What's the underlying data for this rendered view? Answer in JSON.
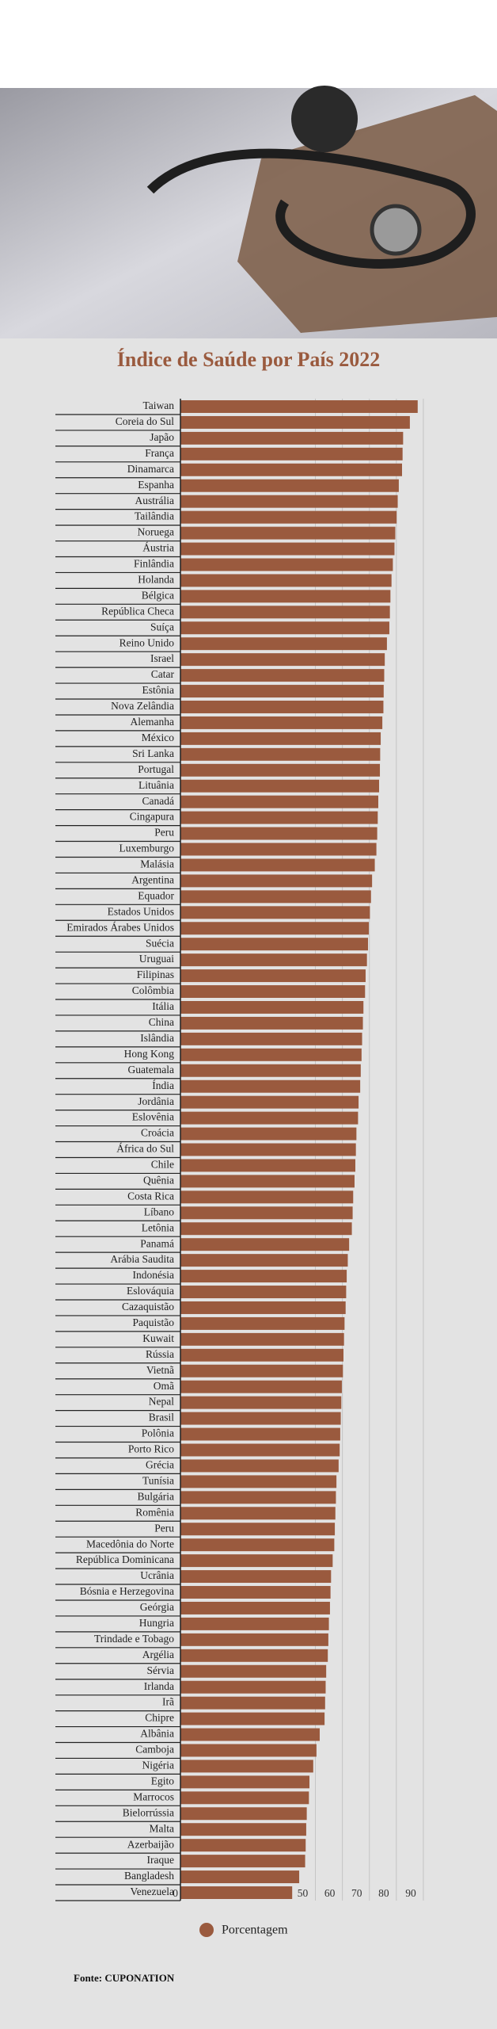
{
  "chart_data": {
    "type": "bar",
    "orientation": "horizontal",
    "title": "Índice de Saúde por País 2022",
    "source": "Fonte: CUPONATION",
    "categories": [
      "Taiwan",
      "Coreia do Sul",
      "Japão",
      "França",
      "Dinamarca",
      "Espanha",
      "Austrália",
      "Tailândia",
      "Noruega",
      "Áustria",
      "Finlândia",
      "Holanda",
      "Bélgica",
      "República Checa",
      "Suíça",
      "Reino Unido",
      "Israel",
      "Catar",
      "Estônia",
      "Nova Zelândia",
      "Alemanha",
      "México",
      "Sri Lanka",
      "Portugal",
      "Lituânia",
      "Canadá",
      "Cingapura",
      "Peru",
      "Luxemburgo",
      "Malásia",
      "Argentina",
      "Equador",
      "Estados Unidos",
      "Emirados Árabes Unidos",
      "Suécia",
      "Uruguai",
      "Filipinas",
      "Colômbia",
      "Itália",
      "China",
      "Islândia",
      "Hong Kong",
      "Guatemala",
      "Índia",
      "Jordânia",
      "Eslovênia",
      "Croácia",
      "África do Sul",
      "Chile",
      "Quênia",
      "Costa Rica",
      "Líbano",
      "Letônia",
      "Panamá",
      "Arábia Saudita",
      "Indonésia",
      "Eslováquia",
      "Cazaquistão",
      "Paquistão",
      "Kuwait",
      "Rússia",
      "Vietnã",
      "Omã",
      "Nepal",
      "Brasil",
      "Polônia",
      "Porto Rico",
      "Grécia",
      "Tunísia",
      "Bulgária",
      "Romênia",
      "Peru",
      "Macedônia do Norte",
      "República Dominicana",
      "Ucrânia",
      "Bósnia e Herzegovina",
      "Geórgia",
      "Hungria",
      "Trindade e Tobago",
      "Argélia",
      "Sérvia",
      "Irlanda",
      "Irã",
      "Chipre",
      "Albânia",
      "Camboja",
      "Nigéria",
      "Egito",
      "Marrocos",
      "Bielorrússia",
      "Malta",
      "Azerbaijão",
      "Iraque",
      "Bangladesh",
      "Venezuela"
    ],
    "series": [
      {
        "name": "Porcentagem",
        "color": "#9a5a3e",
        "values": [
          87.9,
          85.0,
          82.5,
          82.3,
          82.1,
          80.9,
          80.5,
          80.1,
          79.6,
          79.3,
          78.7,
          78.2,
          77.8,
          77.6,
          77.4,
          76.5,
          75.7,
          75.5,
          75.3,
          75.2,
          74.8,
          74.2,
          74.0,
          73.9,
          73.6,
          73.3,
          73.1,
          72.9,
          72.6,
          72.0,
          71.0,
          70.6,
          70.2,
          69.8,
          69.5,
          69.1,
          68.6,
          68.4,
          67.8,
          67.6,
          67.3,
          67.1,
          66.8,
          66.6,
          66.0,
          65.8,
          65.2,
          65.0,
          64.8,
          64.5,
          64.0,
          63.8,
          63.5,
          62.5,
          62.0,
          61.6,
          61.4,
          61.2,
          60.8,
          60.6,
          60.4,
          60.2,
          59.8,
          59.6,
          59.4,
          59.2,
          59.0,
          58.6,
          57.8,
          57.6,
          57.4,
          57.2,
          57.0,
          56.4,
          55.8,
          55.6,
          55.4,
          55.0,
          54.8,
          54.6,
          54.0,
          53.8,
          53.6,
          53.4,
          51.6,
          50.4,
          49.2,
          47.8,
          47.6,
          46.8,
          46.6,
          46.4,
          46.2,
          44.0,
          41.4
        ]
      }
    ],
    "xlim": [
      0,
      95
    ],
    "xticks": [
      0,
      50,
      60,
      70,
      80,
      90
    ],
    "grid": true
  }
}
